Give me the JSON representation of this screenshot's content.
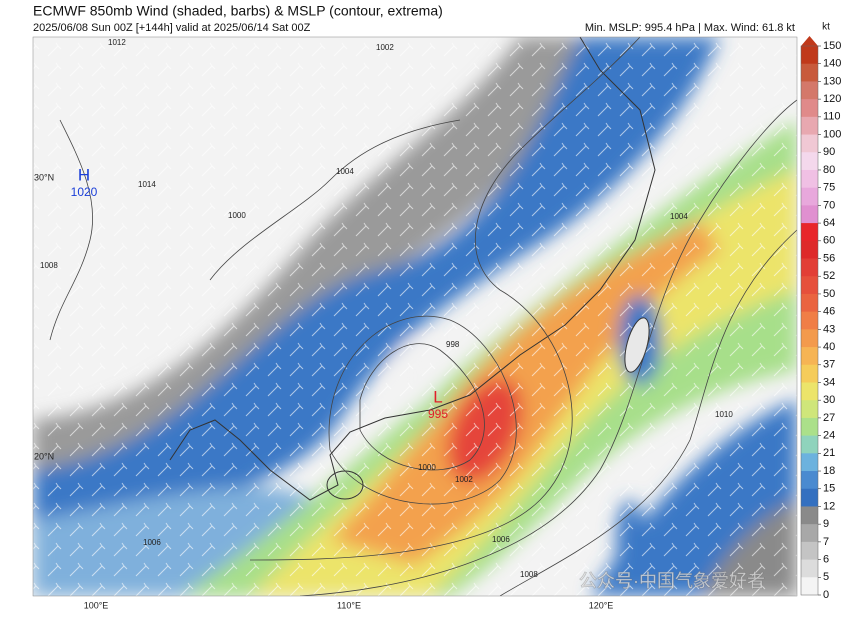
{
  "header": {
    "title": "ECMWF 850mb Wind (shaded, barbs) & MSLP (contour, extrema)",
    "subtitle": "2025/06/08 Sun 00Z [+144h] valid at 2025/06/14 Sat 00Z",
    "stats": "Min. MSLP: 995.4 hPa | Max. Wind: 61.8 kt"
  },
  "map": {
    "lat_labels": [
      "30°N",
      "20°N"
    ],
    "lon_labels": [
      "100°E",
      "110°E",
      "120°E"
    ],
    "high": {
      "letter": "H",
      "pressure": "1020"
    },
    "low": {
      "letter": "L",
      "pressure": "995"
    },
    "contour_labels": [
      "1012",
      "1002",
      "1004",
      "1000",
      "1008",
      "1006",
      "1010",
      "1004",
      "1002",
      "1000",
      "998",
      "1008",
      "1006",
      "1014"
    ],
    "watermark": "公众号·中国气象爱好者"
  },
  "colorbar": {
    "unit": "kt",
    "levels": [
      150,
      140,
      130,
      120,
      110,
      100,
      90,
      80,
      75,
      70,
      64,
      60,
      56,
      52,
      50,
      46,
      43,
      40,
      37,
      34,
      30,
      27,
      24,
      21,
      18,
      15,
      12,
      9,
      7,
      6,
      5,
      0
    ],
    "colors": [
      "#c0391b",
      "#c85a3c",
      "#d4786a",
      "#e08a8a",
      "#e8a8b0",
      "#f0c8d4",
      "#f4d8ec",
      "#f0c0e4",
      "#e8a8dc",
      "#e090d0",
      "#e8262a",
      "#de2a2a",
      "#e23e36",
      "#e6503c",
      "#ea6440",
      "#f07e46",
      "#f39a4c",
      "#f6b454",
      "#f5cc5a",
      "#ece46a",
      "#cfe67a",
      "#abe08a",
      "#8fd3bc",
      "#6cb2de",
      "#4a8ad0",
      "#3470c0",
      "#8a8a8a",
      "#a8a8a8",
      "#c4c4c4",
      "#dcdcdc",
      "#f4f4f4"
    ]
  }
}
